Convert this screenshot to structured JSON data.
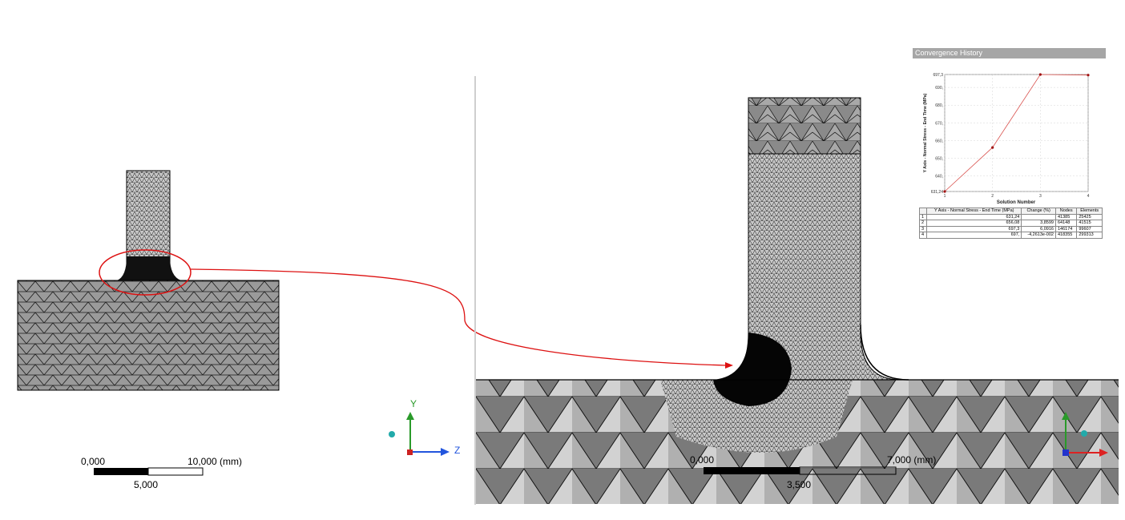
{
  "left_view": {
    "scale_bar": {
      "start_label": "0,000",
      "end_label": "10,000 (mm)",
      "mid_label": "5,000"
    },
    "triad": {
      "y_label": "Y",
      "z_label": "Z"
    }
  },
  "right_view": {
    "scale_bar": {
      "start_label": "0,000",
      "end_label": "7,000 (mm)",
      "mid_label": "3,500"
    }
  },
  "convergence_history": {
    "title": "Convergence History",
    "chart_data": {
      "type": "line",
      "x": [
        1,
        2,
        3,
        4
      ],
      "values": [
        631.24,
        656.08,
        697.3,
        697.0
      ],
      "xlabel": "Solution Number",
      "ylabel": "Y Axis - Normal Stress - End Time (MPa)",
      "ylim": [
        631.24,
        697.3
      ],
      "xlim": [
        1,
        4
      ],
      "y_tick_labels": [
        "631,24",
        "640,",
        "650,",
        "660,",
        "670,",
        "680,",
        "690,",
        "697,3"
      ],
      "x_tick_labels": [
        "1",
        "2",
        "3",
        "4"
      ],
      "grid": true,
      "series_color": "#d9534f"
    },
    "table": {
      "headers": [
        "",
        "Y Axis - Normal Stress - End Time (MPa)",
        "Change (%)",
        "Nodes",
        "Elements"
      ],
      "rows": [
        [
          "1",
          "631,24",
          "",
          "41385",
          "25425"
        ],
        [
          "2",
          "656,08",
          "3,8599",
          "64148",
          "41515"
        ],
        [
          "3",
          "697,3",
          "6,0916",
          "146174",
          "99607"
        ],
        [
          "4",
          "697,",
          "-4,2613e-002",
          "418355",
          "299313"
        ]
      ]
    }
  },
  "annotation": {
    "highlight_color": "#dd1111"
  }
}
